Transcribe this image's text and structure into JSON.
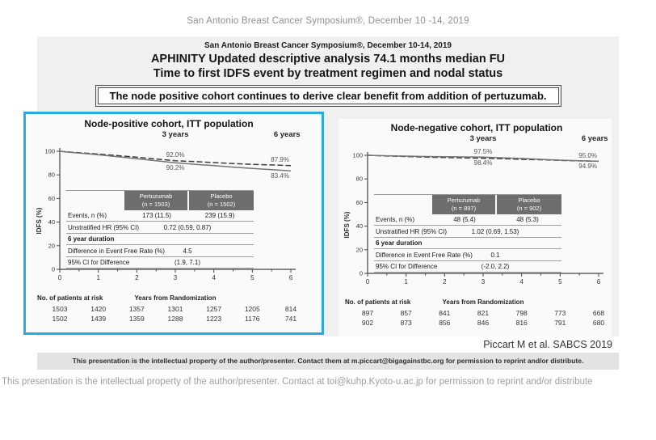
{
  "page": {
    "top_header": "San Antonio Breast Cancer Symposium®, December 10 -14, 2019",
    "bottom_footer": "This presentation is the intellectual property of the author/presenter. Contact at toi@kuhp.Kyoto-u.ac.jp  for permission to reprint and/or distribute"
  },
  "slide": {
    "header": "San Antonio Breast Cancer Symposium®, December 10-14, 2019",
    "title_line1": "APHINITY Updated descriptive analysis 74.1 months median FU",
    "title_line2": "Time to first IDFS event by treatment regimen and nodal status",
    "statement": "The node positive cohort continues to derive clear benefit from addition of pertuzumab.",
    "citation": "Piccart M et al. SABCS 2019",
    "fine_print": "This presentation is the intellectual property of the author/presenter. Contact them at m.piccart@bigagainstbc.org for permission to reprint and/or distribute.",
    "highlight_color": "#29abe2"
  },
  "chart_data": [
    {
      "type": "line",
      "title": "Node-positive cohort, ITT population",
      "xlabel": "Years from Randomization",
      "ylabel": "IDFS (%)",
      "xlim": [
        0,
        6
      ],
      "ylim": [
        0,
        100
      ],
      "xticks": [
        0,
        1,
        2,
        3,
        4,
        5,
        6
      ],
      "yticks": [
        0,
        20,
        40,
        60,
        80,
        100
      ],
      "period_labels": [
        {
          "text": "3 years",
          "x": 3
        },
        {
          "text": "6 years",
          "x": 5.9
        }
      ],
      "series": [
        {
          "name": "Pertuzumab",
          "dashed": true,
          "color": "#3c3c3c",
          "points": [
            [
              0,
              100
            ],
            [
              0.25,
              99.3
            ],
            [
              0.75,
              98.2
            ],
            [
              1,
              97.6
            ],
            [
              1.5,
              96.3
            ],
            [
              2,
              94.9
            ],
            [
              2.5,
              93.4
            ],
            [
              3,
              92.0
            ],
            [
              3.5,
              91.2
            ],
            [
              4,
              90.4
            ],
            [
              4.5,
              89.6
            ],
            [
              5,
              88.9
            ],
            [
              5.5,
              88.4
            ],
            [
              6,
              87.9
            ]
          ]
        },
        {
          "name": "Placebo",
          "dashed": false,
          "color": "#757575",
          "points": [
            [
              0,
              100
            ],
            [
              0.25,
              99.1
            ],
            [
              0.75,
              97.8
            ],
            [
              1,
              97.0
            ],
            [
              1.5,
              95.4
            ],
            [
              2,
              93.7
            ],
            [
              2.5,
              91.9
            ],
            [
              3,
              90.2
            ],
            [
              3.5,
              89.0
            ],
            [
              4,
              87.8
            ],
            [
              4.5,
              86.6
            ],
            [
              5,
              85.5
            ],
            [
              5.5,
              84.4
            ],
            [
              6,
              83.4
            ]
          ]
        }
      ],
      "annotations": [
        {
          "text": "92.0%",
          "x": 3.0,
          "ay": 92.0,
          "pos": "above"
        },
        {
          "text": "90.2%",
          "x": 3.0,
          "ay": 90.2,
          "pos": "below"
        },
        {
          "text": "87.9%",
          "x": 5.72,
          "ay": 87.9,
          "pos": "above"
        },
        {
          "text": "83.4%",
          "x": 5.72,
          "ay": 83.4,
          "pos": "below"
        }
      ],
      "stats_table": {
        "columns": [
          {
            "line1": "Pertuzumab",
            "line2": "(n = 1503)"
          },
          {
            "line1": "Placebo",
            "line2": "(n = 1502)"
          }
        ],
        "rows": [
          {
            "label": "Events, n (%)",
            "values": [
              "173 (11.5)",
              "239 (15.9)"
            ]
          },
          {
            "label": "Unstratified HR (95% CI)",
            "span_value": "0.72 (0.59, 0.87)"
          },
          {
            "label": "6 year duration",
            "bold": true
          },
          {
            "label": "Difference in Event Free Rate (%)",
            "span_value": "4.5"
          },
          {
            "label": "95% CI for Difference",
            "span_value": "(1.9, 7.1)"
          }
        ]
      },
      "at_risk_label": "No. of patients at risk",
      "at_risk_rows": [
        [
          1503,
          1420,
          1357,
          1301,
          1257,
          1205,
          814
        ],
        [
          1502,
          1439,
          1359,
          1288,
          1223,
          1176,
          741
        ]
      ]
    },
    {
      "type": "line",
      "title": "Node-negative cohort, ITT population",
      "xlabel": "Years from Randomization",
      "ylabel": "IDFS (%)",
      "xlim": [
        0,
        6
      ],
      "ylim": [
        0,
        100
      ],
      "xticks": [
        0,
        1,
        2,
        3,
        4,
        5,
        6
      ],
      "yticks": [
        0,
        20,
        40,
        60,
        80,
        100
      ],
      "period_labels": [
        {
          "text": "3 years",
          "x": 3
        },
        {
          "text": "6 years",
          "x": 5.9
        }
      ],
      "series": [
        {
          "name": "Pertuzumab",
          "dashed": true,
          "color": "#3c3c3c",
          "points": [
            [
              0,
              100
            ],
            [
              0.5,
              99.4
            ],
            [
              1,
              99.0
            ],
            [
              1.5,
              98.5
            ],
            [
              2,
              98.1
            ],
            [
              2.5,
              97.8
            ],
            [
              3,
              97.5
            ],
            [
              3.5,
              97.1
            ],
            [
              4,
              96.6
            ],
            [
              4.5,
              96.2
            ],
            [
              5,
              95.7
            ],
            [
              5.5,
              95.3
            ],
            [
              6,
              95.0
            ]
          ]
        },
        {
          "name": "Placebo",
          "dashed": false,
          "color": "#757575",
          "points": [
            [
              0,
              100
            ],
            [
              0.5,
              99.6
            ],
            [
              1,
              99.3
            ],
            [
              1.5,
              99.0
            ],
            [
              2,
              98.8
            ],
            [
              2.5,
              98.6
            ],
            [
              3,
              98.4
            ],
            [
              3.5,
              97.9
            ],
            [
              4,
              97.3
            ],
            [
              4.5,
              96.6
            ],
            [
              5,
              95.9
            ],
            [
              5.5,
              95.4
            ],
            [
              6,
              94.9
            ]
          ]
        }
      ],
      "annotations": [
        {
          "text": "97.5%",
          "x": 3.0,
          "ay": 98.4,
          "pos": "above"
        },
        {
          "text": "98.4%",
          "x": 3.0,
          "ay": 97.5,
          "pos": "below"
        },
        {
          "text": "95.0%",
          "x": 5.72,
          "ay": 95.2,
          "pos": "above"
        },
        {
          "text": "94.9%",
          "x": 5.72,
          "ay": 94.7,
          "pos": "below"
        }
      ],
      "stats_table": {
        "columns": [
          {
            "line1": "Pertuzumab",
            "line2": "(n = 897)"
          },
          {
            "line1": "Placebo",
            "line2": "(n = 902)"
          }
        ],
        "rows": [
          {
            "label": "Events, n (%)",
            "values": [
              "48 (5.4)",
              "48 (5.3)"
            ]
          },
          {
            "label": "Unstratified HR (95% CI)",
            "span_value": "1.02 (0.69, 1.53)"
          },
          {
            "label": "6 year duration",
            "bold": true
          },
          {
            "label": "Difference in Event Free Rate (%)",
            "span_value": "0.1"
          },
          {
            "label": "95% CI for Difference",
            "span_value": "(-2.0, 2.2)"
          }
        ]
      },
      "at_risk_label": "No. of patients at risk",
      "at_risk_rows": [
        [
          897,
          857,
          841,
          821,
          798,
          773,
          668
        ],
        [
          902,
          873,
          856,
          846,
          816,
          791,
          680
        ]
      ]
    }
  ]
}
